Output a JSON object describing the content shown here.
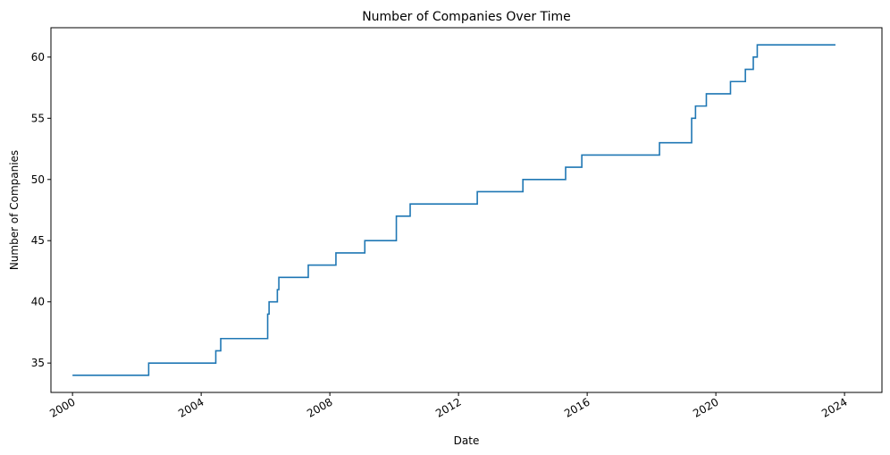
{
  "chart_data": {
    "type": "line",
    "title": "Number of Companies Over Time",
    "xlabel": "Date",
    "ylabel": "Number of Companies",
    "x_ticks": [
      "2000",
      "2004",
      "2008",
      "2012",
      "2016",
      "2020",
      "2024"
    ],
    "y_ticks": [
      35,
      40,
      45,
      50,
      55,
      60
    ],
    "xlim": [
      "1999-05-01",
      "2025-03-01"
    ],
    "ylim": [
      32.6,
      62.4
    ],
    "grid": false,
    "legend": "none",
    "line_color": "#1f77b4",
    "series": [
      {
        "drawstyle": "steps-post",
        "points": [
          [
            "2000-01-01",
            34
          ],
          [
            "2002-05-15",
            35
          ],
          [
            "2004-06-15",
            36
          ],
          [
            "2004-08-10",
            37
          ],
          [
            "2006-01-25",
            39
          ],
          [
            "2006-02-10",
            40
          ],
          [
            "2006-05-15",
            41
          ],
          [
            "2006-06-01",
            42
          ],
          [
            "2007-05-01",
            43
          ],
          [
            "2008-03-10",
            44
          ],
          [
            "2009-02-01",
            45
          ],
          [
            "2010-01-25",
            47
          ],
          [
            "2010-07-01",
            48
          ],
          [
            "2012-08-01",
            49
          ],
          [
            "2014-01-01",
            50
          ],
          [
            "2015-05-01",
            51
          ],
          [
            "2015-11-01",
            52
          ],
          [
            "2018-04-01",
            53
          ],
          [
            "2019-04-01",
            55
          ],
          [
            "2019-05-15",
            56
          ],
          [
            "2019-09-15",
            57
          ],
          [
            "2020-06-15",
            58
          ],
          [
            "2020-12-01",
            59
          ],
          [
            "2021-03-01",
            60
          ],
          [
            "2021-04-15",
            61
          ],
          [
            "2023-09-20",
            61
          ]
        ]
      }
    ]
  }
}
